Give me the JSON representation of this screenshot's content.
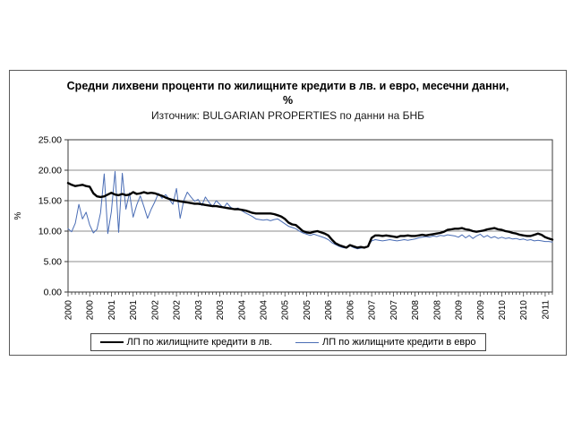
{
  "chart_data": {
    "type": "line",
    "title": "Средни лихвени проценти по жилищните кредити в лв. и евро, месечни данни, %",
    "subtitle": "Източник: BULGARIAN PROPERTIES по данни на БНБ",
    "ylabel": "%",
    "ylim": [
      0,
      25
    ],
    "ytick_step": 5,
    "ytick_labels": [
      "0.00",
      "5.00",
      "10.00",
      "15.00",
      "20.00",
      "25.00"
    ],
    "grid": true,
    "legend_position": "bottom",
    "x_start": "2000-01",
    "x_frequency": "monthly",
    "x_label_every": 6,
    "x_tick_labels": [
      "2000",
      "2000",
      "2001",
      "2001",
      "2002",
      "2002",
      "2003",
      "2003",
      "2004",
      "2004",
      "2005",
      "2005",
      "2006",
      "2006",
      "2007",
      "2007",
      "2008",
      "2008",
      "2009",
      "2009",
      "2010",
      "2010",
      "2011"
    ],
    "series": [
      {
        "name": "ЛП по жилищните кредити в лв.",
        "color": "#000000",
        "stroke_width": 2.4,
        "values": [
          17.9,
          17.6,
          17.4,
          17.5,
          17.6,
          17.4,
          17.3,
          16.2,
          15.7,
          15.6,
          15.7,
          16.0,
          16.3,
          16.0,
          15.9,
          16.1,
          15.9,
          16.0,
          16.4,
          16.1,
          16.2,
          16.4,
          16.2,
          16.3,
          16.2,
          16.0,
          15.8,
          15.5,
          15.3,
          15.1,
          15.0,
          14.9,
          14.8,
          14.7,
          14.6,
          14.5,
          14.5,
          14.4,
          14.3,
          14.2,
          14.1,
          14.1,
          14.0,
          13.9,
          13.8,
          13.7,
          13.6,
          13.6,
          13.5,
          13.4,
          13.2,
          13.0,
          12.9,
          12.9,
          12.9,
          12.9,
          12.9,
          12.8,
          12.6,
          12.4,
          12.0,
          11.4,
          11.1,
          11.0,
          10.5,
          10.0,
          9.8,
          9.7,
          9.9,
          10.0,
          9.8,
          9.6,
          9.3,
          8.6,
          8.0,
          7.7,
          7.5,
          7.3,
          7.7,
          7.5,
          7.3,
          7.4,
          7.3,
          7.5,
          8.9,
          9.3,
          9.3,
          9.2,
          9.3,
          9.2,
          9.1,
          9.0,
          9.2,
          9.2,
          9.3,
          9.2,
          9.2,
          9.3,
          9.4,
          9.3,
          9.4,
          9.5,
          9.6,
          9.7,
          9.9,
          10.2,
          10.3,
          10.4,
          10.4,
          10.5,
          10.3,
          10.2,
          10.0,
          9.9,
          10.0,
          10.1,
          10.3,
          10.4,
          10.5,
          10.3,
          10.2,
          10.0,
          9.9,
          9.7,
          9.6,
          9.4,
          9.3,
          9.2,
          9.2,
          9.4,
          9.6,
          9.4,
          9.0,
          8.8,
          8.6
        ]
      },
      {
        "name": "ЛП по жилищните кредити в евро",
        "color": "#4a6db5",
        "stroke_width": 1,
        "values": [
          10.4,
          9.9,
          11.3,
          14.4,
          12.0,
          13.1,
          11.0,
          9.7,
          10.3,
          13.0,
          19.4,
          9.6,
          13.2,
          19.8,
          9.8,
          19.5,
          13.6,
          16.3,
          12.3,
          14.3,
          15.8,
          14.0,
          12.1,
          13.6,
          14.8,
          16.2,
          15.4,
          16.0,
          15.2,
          14.4,
          17.0,
          12.1,
          15.0,
          16.4,
          15.6,
          14.9,
          15.2,
          14.2,
          15.6,
          14.7,
          14.0,
          15.0,
          14.4,
          13.8,
          14.6,
          13.9,
          13.6,
          13.8,
          13.4,
          13.0,
          12.7,
          12.4,
          12.0,
          11.9,
          11.8,
          11.9,
          11.7,
          11.9,
          12.0,
          11.6,
          11.2,
          10.8,
          10.6,
          10.4,
          10.0,
          9.7,
          9.5,
          9.3,
          9.5,
          9.3,
          9.1,
          8.9,
          8.6,
          8.1,
          7.8,
          7.5,
          7.3,
          7.2,
          7.6,
          7.3,
          7.1,
          7.2,
          7.3,
          7.6,
          8.4,
          8.6,
          8.5,
          8.4,
          8.5,
          8.6,
          8.5,
          8.4,
          8.5,
          8.6,
          8.5,
          8.6,
          8.7,
          8.9,
          9.0,
          9.1,
          9.0,
          9.2,
          9.1,
          9.3,
          9.2,
          9.4,
          9.3,
          9.2,
          9.0,
          9.4,
          8.9,
          9.3,
          8.8,
          9.2,
          9.5,
          9.0,
          9.3,
          8.9,
          9.1,
          8.8,
          9.0,
          8.8,
          8.9,
          8.7,
          8.8,
          8.6,
          8.7,
          8.5,
          8.6,
          8.4,
          8.5,
          8.4,
          8.3,
          8.3,
          8.2
        ]
      }
    ],
    "colors": {
      "gridline": "#8c8c8c",
      "plot_border": "#3a3a3a",
      "tick": "#3a3a3a",
      "text": "#000000"
    }
  }
}
